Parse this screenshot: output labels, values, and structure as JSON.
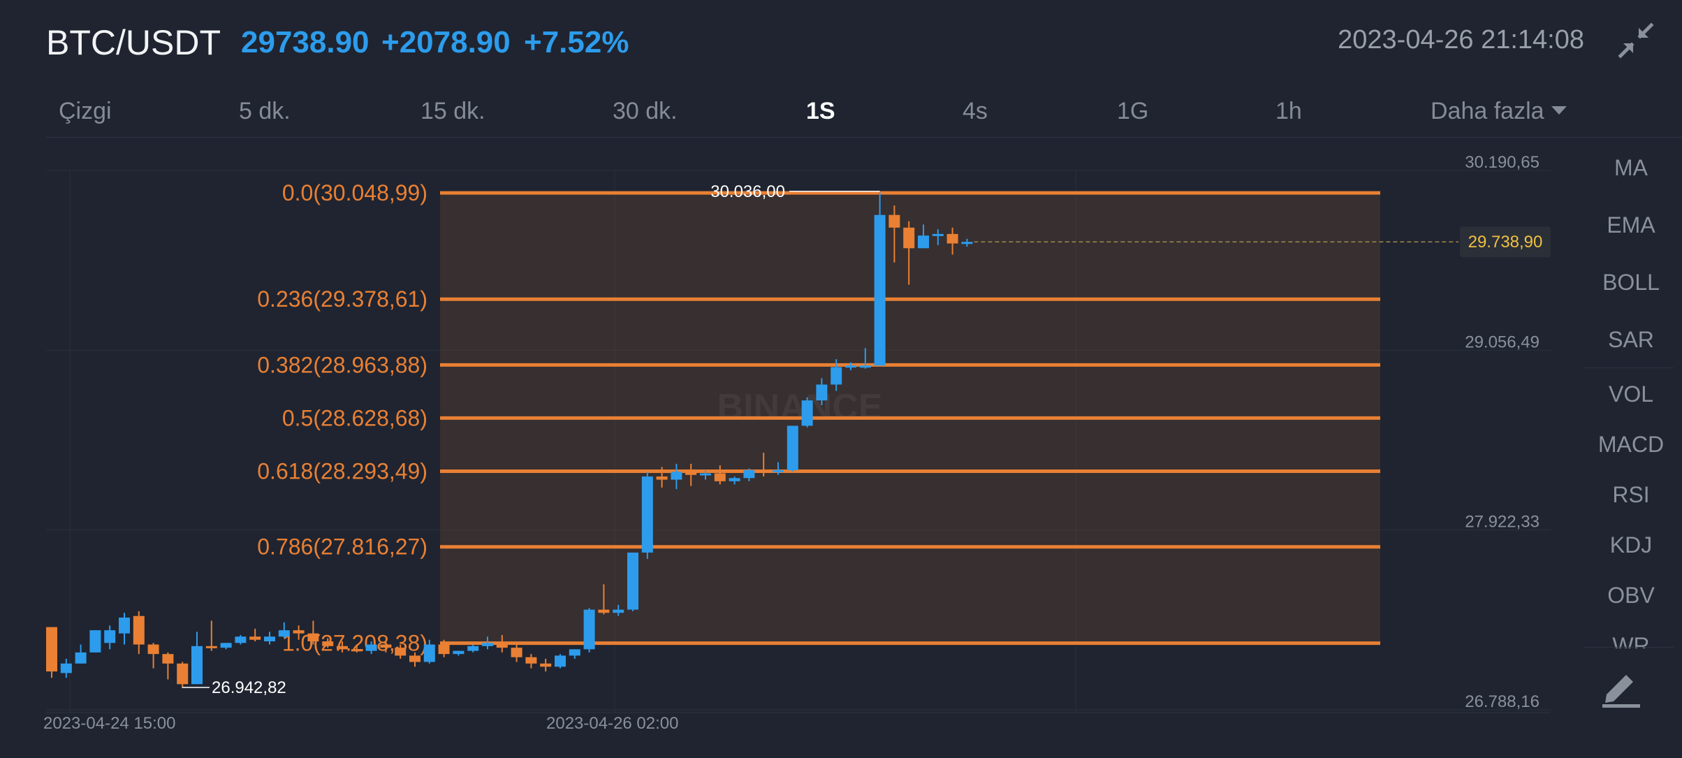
{
  "header": {
    "pair": "BTC/USDT",
    "price": "29738.90",
    "change": "+2078.90",
    "change_pct": "+7.52%",
    "datetime": "2023-04-26 21:14:08",
    "shrink_icon": "collapse-arrows-icon"
  },
  "tabs": [
    {
      "label": "Çizgi"
    },
    {
      "label": "5 dk."
    },
    {
      "label": "15 dk."
    },
    {
      "label": "30 dk."
    },
    {
      "label": "1S",
      "active": true
    },
    {
      "label": "4s"
    },
    {
      "label": "1G"
    },
    {
      "label": "1h"
    },
    {
      "label": "Daha fazla"
    }
  ],
  "indicators": [
    "MA",
    "EMA",
    "BOLL",
    "SAR",
    "VOL",
    "MACD",
    "RSI",
    "KDJ",
    "OBV",
    "WR"
  ],
  "edit_icon": "pencil-icon",
  "colors": {
    "background": "#1f2430",
    "up": "#2d9cec",
    "down": "#e98034",
    "fib": "#e98034",
    "current_price": "#f0c040"
  },
  "chart_data": {
    "type": "candlestick",
    "watermark": "BINANCE",
    "ylim": [
      26788.16,
      30190.65
    ],
    "y_ticks": [
      "30.190,65",
      "29.056,49",
      "27.922,33",
      "26.788,16"
    ],
    "x_ticks": [
      "2023-04-24 15:00",
      "2023-04-26 02:00"
    ],
    "current_price_label": "29.738,90",
    "high_label": "30.036,00",
    "low_label": "26.942,82",
    "fib_levels": [
      {
        "label": "0.0(30.048,99)",
        "value": 30048.99
      },
      {
        "label": "0.236(29.378,61)",
        "value": 29378.61
      },
      {
        "label": "0.382(28.963,88)",
        "value": 28963.88
      },
      {
        "label": "0.5(28.628,68)",
        "value": 28628.68
      },
      {
        "label": "0.618(28.293,49)",
        "value": 28293.49
      },
      {
        "label": "0.786(27.816,27)",
        "value": 27816.27
      },
      {
        "label": "1.0(27.208,38)",
        "value": 27208.38
      }
    ],
    "candles": [
      [
        27310,
        27310,
        27030,
        26990
      ],
      [
        27020,
        27110,
        27080,
        26990
      ],
      [
        27080,
        27200,
        27150,
        27080
      ],
      [
        27150,
        27220,
        27290,
        27300
      ],
      [
        27210,
        27320,
        27290,
        27170
      ],
      [
        27270,
        27400,
        27370,
        27200
      ],
      [
        27380,
        27410,
        27200,
        27140
      ],
      [
        27200,
        27210,
        27140,
        27050
      ],
      [
        27140,
        27150,
        27080,
        26980
      ],
      [
        27080,
        27090,
        26950,
        26930
      ],
      [
        26950,
        27280,
        27190,
        26960
      ],
      [
        27190,
        27350,
        27180,
        27160
      ],
      [
        27180,
        27210,
        27210,
        27170
      ],
      [
        27210,
        27260,
        27250,
        27200
      ],
      [
        27250,
        27300,
        27230,
        27220
      ],
      [
        27220,
        27280,
        27250,
        27200
      ],
      [
        27250,
        27340,
        27290,
        27240
      ],
      [
        27290,
        27320,
        27270,
        27230
      ],
      [
        27270,
        27350,
        27220,
        27200
      ],
      [
        27220,
        27240,
        27190,
        27180
      ],
      [
        27190,
        27220,
        27170,
        27150
      ],
      [
        27170,
        27200,
        27160,
        27150
      ],
      [
        27160,
        27220,
        27200,
        27140
      ],
      [
        27200,
        27220,
        27180,
        27150
      ],
      [
        27180,
        27200,
        27130,
        27110
      ],
      [
        27130,
        27150,
        27090,
        27060
      ],
      [
        27090,
        27230,
        27200,
        27080
      ],
      [
        27200,
        27230,
        27140,
        27120
      ],
      [
        27140,
        27150,
        27160,
        27130
      ],
      [
        27160,
        27200,
        27190,
        27150
      ],
      [
        27190,
        27250,
        27210,
        27170
      ],
      [
        27210,
        27260,
        27180,
        27150
      ],
      [
        27180,
        27200,
        27120,
        27090
      ],
      [
        27120,
        27140,
        27080,
        27050
      ],
      [
        27080,
        27110,
        27060,
        27030
      ],
      [
        27060,
        27140,
        27130,
        27050
      ],
      [
        27130,
        27160,
        27170,
        27110
      ],
      [
        27170,
        27430,
        27420,
        27150
      ],
      [
        27420,
        27580,
        27400,
        27390
      ],
      [
        27400,
        27450,
        27420,
        27380
      ],
      [
        27420,
        27780,
        27780,
        27410
      ],
      [
        27780,
        28290,
        28260,
        27740
      ],
      [
        28260,
        28320,
        28240,
        28190
      ],
      [
        28240,
        28340,
        28290,
        28180
      ],
      [
        28290,
        28340,
        28270,
        28200
      ],
      [
        28270,
        28300,
        28280,
        28240
      ],
      [
        28280,
        28330,
        28230,
        28210
      ],
      [
        28230,
        28260,
        28250,
        28210
      ],
      [
        28250,
        28310,
        28300,
        28230
      ],
      [
        28300,
        28410,
        28290,
        28260
      ],
      [
        28290,
        28350,
        28300,
        28270
      ],
      [
        28300,
        28570,
        28580,
        28290
      ],
      [
        28580,
        28760,
        28740,
        28570
      ],
      [
        28740,
        28880,
        28840,
        28710
      ],
      [
        28840,
        29000,
        28950,
        28800
      ],
      [
        28950,
        28980,
        28960,
        28930
      ],
      [
        28960,
        29070,
        28960,
        28940
      ],
      [
        28960,
        30050,
        29910,
        28960
      ],
      [
        29910,
        29970,
        29830,
        29610
      ],
      [
        29830,
        29870,
        29700,
        29470
      ],
      [
        29700,
        29850,
        29780,
        29700
      ],
      [
        29780,
        29820,
        29790,
        29720
      ],
      [
        29790,
        29830,
        29730,
        29660
      ],
      [
        29730,
        29760,
        29740,
        29710
      ]
    ]
  }
}
